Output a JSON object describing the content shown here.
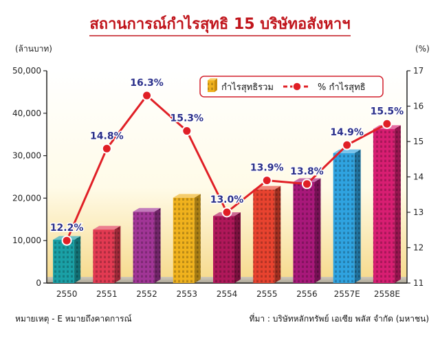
{
  "title": "สถานการณ์กำไรสุทธิ 15 บริษัทอสังหาฯ",
  "notes": {
    "left": "หมายเหตุ - E หมายถึงคาดการณ์",
    "right": "ที่มา : บริษัทหลักทรัพย์ เอเซีย พลัส จำกัด (มหาชน)"
  },
  "colors": {
    "title": "#c0141b",
    "line": "#e01f26",
    "label": "#2a2f8a",
    "bars": [
      "#1aa0a6",
      "#e23a52",
      "#a13596",
      "#f0b21d",
      "#b0185a",
      "#e8432f",
      "#a8187a",
      "#2fa3e0",
      "#d81e72"
    ]
  },
  "chart_data": {
    "type": "bar+line",
    "categories": [
      "2550",
      "2551",
      "2552",
      "2553",
      "2554",
      "2555",
      "2556",
      "2557E",
      "2558E"
    ],
    "series": [
      {
        "name": "กำไรสุทธิรวม",
        "type": "bar",
        "axis": "left",
        "values": [
          10200,
          12600,
          16800,
          20100,
          15800,
          22000,
          23800,
          30600,
          36300
        ]
      },
      {
        "name": "% กำไรสุทธิ",
        "type": "line",
        "axis": "right",
        "values": [
          12.2,
          14.8,
          16.3,
          15.3,
          13.0,
          13.9,
          13.8,
          14.9,
          15.5
        ],
        "labels": [
          "12.2%",
          "14.8%",
          "16.3%",
          "15.3%",
          "13.0%",
          "13.9%",
          "13.8%",
          "14.9%",
          "15.5%"
        ]
      }
    ],
    "ylabel_left": "(ล้านบาท)",
    "ylabel_right": "(%)",
    "ylim_left": [
      0,
      50000
    ],
    "ylim_right": [
      11,
      17
    ],
    "yticks_left": [
      "0",
      "10,000",
      "20,000",
      "30,000",
      "40,000",
      "50,000"
    ],
    "yticks_right": [
      "11",
      "12",
      "13",
      "14",
      "15",
      "16",
      "17"
    ],
    "legend": [
      "กำไรสุทธิรวม",
      "% กำไรสุทธิ"
    ],
    "legend_position": "top-right",
    "grid": false
  }
}
